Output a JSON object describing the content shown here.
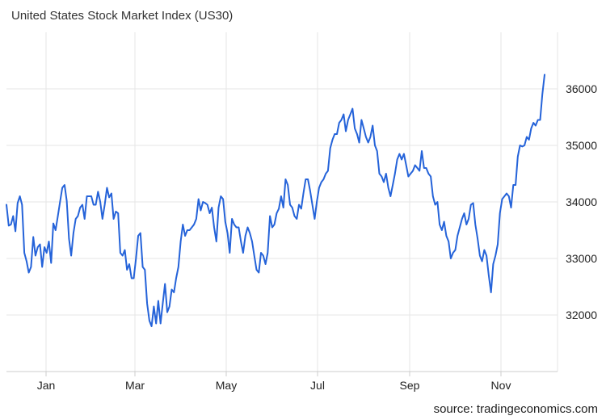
{
  "chart_data": {
    "type": "line",
    "title": "United States Stock Market Index (US30)",
    "xlabel": "",
    "ylabel": "",
    "x_ticks": [
      "Jan",
      "Mar",
      "May",
      "Jul",
      "Sep",
      "Nov"
    ],
    "y_ticks": [
      32000,
      33000,
      34000,
      35000,
      36000
    ],
    "ylim": [
      31000,
      37000
    ],
    "grid": true,
    "line_color": "#2563d9",
    "series": [
      {
        "values": [
          33950,
          33580,
          33600,
          33750,
          33480,
          33980,
          34100,
          33950,
          33100,
          32950,
          32750,
          32850,
          33380,
          33050,
          33200,
          33250,
          32850,
          33200,
          33100,
          33300,
          32920,
          33620,
          33500,
          33750,
          34000,
          34250,
          34300,
          34020,
          33350,
          33050,
          33450,
          33700,
          33750,
          33900,
          33950,
          33700,
          34100,
          34100,
          34100,
          33950,
          33950,
          34180,
          34000,
          33700,
          33950,
          34250,
          34080,
          34150,
          33700,
          33830,
          33800,
          33100,
          33050,
          33150,
          32800,
          32900,
          32650,
          32650,
          33000,
          33400,
          33450,
          32850,
          32800,
          32200,
          31900,
          31800,
          32150,
          31850,
          32250,
          31850,
          32200,
          32550,
          32050,
          32150,
          32450,
          32400,
          32650,
          32850,
          33300,
          33600,
          33400,
          33500,
          33500,
          33550,
          33600,
          33700,
          34050,
          33850,
          34000,
          33980,
          33950,
          33800,
          33900,
          33550,
          33300,
          33900,
          34100,
          34050,
          33650,
          33450,
          33100,
          33700,
          33600,
          33550,
          33550,
          33300,
          33100,
          33400,
          33550,
          33450,
          33300,
          33050,
          32800,
          32750,
          33100,
          33050,
          32900,
          33100,
          33750,
          33550,
          33600,
          33800,
          33880,
          34100,
          33900,
          34400,
          34300,
          33950,
          33900,
          33750,
          33700,
          33950,
          33880,
          34150,
          34400,
          34400,
          34200,
          33950,
          33700,
          34000,
          34250,
          34350,
          34400,
          34500,
          34550,
          34950,
          35100,
          35200,
          35200,
          35400,
          35450,
          35550,
          35250,
          35450,
          35550,
          35650,
          35300,
          35200,
          35050,
          35450,
          35300,
          35150,
          35050,
          35150,
          35350,
          35000,
          34900,
          34500,
          34450,
          34350,
          34500,
          34250,
          34100,
          34300,
          34500,
          34750,
          34850,
          34750,
          34850,
          34650,
          34450,
          34500,
          34550,
          34650,
          34600,
          34550,
          34900,
          34600,
          34600,
          34500,
          34450,
          34100,
          33950,
          34000,
          33600,
          33500,
          33650,
          33400,
          33300,
          33000,
          33100,
          33150,
          33400,
          33550,
          33700,
          33800,
          33600,
          33700,
          33950,
          33980,
          33600,
          33350,
          33050,
          32950,
          33150,
          33050,
          32700,
          32400,
          32900,
          33050,
          33250,
          33800,
          34050,
          34100,
          34150,
          34100,
          33900,
          34300,
          34300,
          34800,
          35000,
          34980,
          35000,
          35150,
          35100,
          35300,
          35400,
          35350,
          35450,
          35450,
          35900,
          36250
        ]
      }
    ],
    "source": "source: tradingeconomics.com"
  }
}
